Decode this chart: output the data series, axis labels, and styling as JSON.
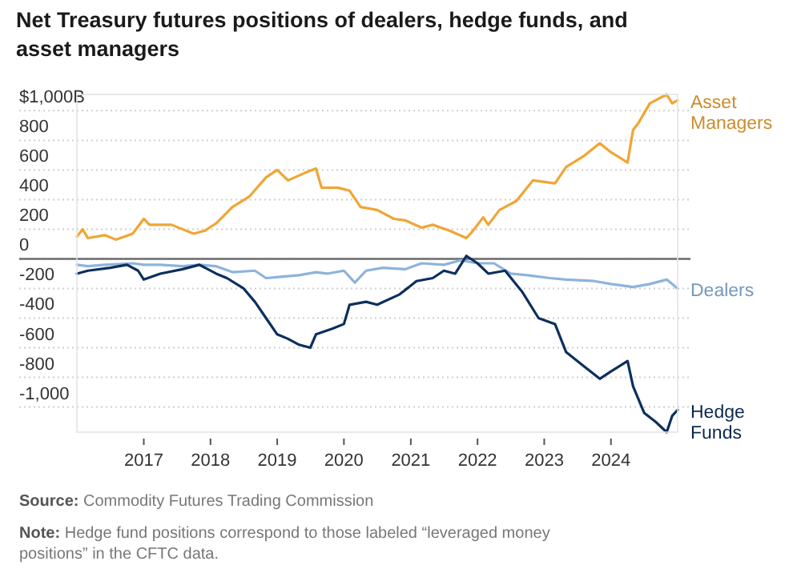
{
  "chart_data": {
    "type": "line",
    "title": "Net Treasury futures positions of dealers, hedge funds, and asset managers",
    "annotations": [
      "Source: Commodity Futures Trading Commission",
      "Note: Hedge fund positions correspond to those labeled “leveraged money positions” in the CFTC data."
    ],
    "xticks": [
      {
        "value": "2017-01-01",
        "label": "2017"
      },
      {
        "value": "2018-01-01",
        "label": "2018"
      },
      {
        "value": "2019-01-01",
        "label": "2019"
      },
      {
        "value": "2020-01-01",
        "label": "2020"
      },
      {
        "value": "2021-01-01",
        "label": "2021"
      },
      {
        "value": "2022-01-01",
        "label": "2022"
      },
      {
        "value": "2023-01-01",
        "label": "2023"
      },
      {
        "value": "2024-01-01",
        "label": "2024"
      }
    ],
    "yticks": [
      {
        "value": -1000,
        "label": "-1,000"
      },
      -800,
      -600,
      -400,
      -200,
      0,
      200,
      400,
      600,
      800,
      {
        "value": 1000,
        "label": "$1,000B"
      }
    ],
    "xlim": [
      "2016-01",
      "2024-12-31"
    ],
    "ylim": [
      -1170,
      1110
    ],
    "grid": "y",
    "legend": false,
    "line_style": "solid",
    "marker": "none",
    "ref_lines": [
      {
        "axis": "y",
        "value": 0,
        "color": "#6b6b6b"
      }
    ],
    "series": [
      {
        "name": "Asset Managers",
        "color": "#f0a534",
        "x": [
          "2016-01",
          "2016-02",
          "2016-03",
          "2016-06",
          "2016-08",
          "2016-11",
          "2017-01",
          "2017-02",
          "2017-06",
          "2017-10",
          "2017-12",
          "2018-02",
          "2018-05",
          "2018-08",
          "2018-11",
          "2019-01",
          "2019-03",
          "2019-06",
          "2019-08",
          "2019-09",
          "2019-12",
          "2020-02",
          "2020-04",
          "2020-07",
          "2020-10",
          "2020-12",
          "2021-03",
          "2021-05",
          "2021-08",
          "2021-11",
          "2021-12",
          "2022-02",
          "2022-03",
          "2022-05",
          "2022-08",
          "2022-11",
          "2023-03",
          "2023-05",
          "2023-08",
          "2023-11",
          "2024-01",
          "2024-04",
          "2024-05",
          "2024-06",
          "2024-08",
          "2024-11",
          "2024-12-01",
          "2024-12-31"
        ],
        "values": [
          150,
          200,
          140,
          160,
          130,
          170,
          270,
          230,
          230,
          170,
          190,
          240,
          350,
          420,
          550,
          600,
          530,
          580,
          610,
          480,
          480,
          460,
          350,
          330,
          270,
          260,
          210,
          230,
          190,
          140,
          180,
          280,
          230,
          330,
          390,
          530,
          510,
          620,
          690,
          780,
          720,
          650,
          870,
          920,
          1050,
          1110,
          1050,
          1070
        ]
      },
      {
        "name": "Dealers",
        "color": "#8db3dc",
        "x": [
          "2016-01",
          "2016-03",
          "2016-06",
          "2016-11",
          "2017-01",
          "2017-04",
          "2017-08",
          "2017-11",
          "2018-02",
          "2018-05",
          "2018-09",
          "2018-11",
          "2019-02",
          "2019-05",
          "2019-08",
          "2019-10",
          "2020-01",
          "2020-03",
          "2020-05",
          "2020-08",
          "2020-12",
          "2021-03",
          "2021-07",
          "2021-10",
          "2022-01",
          "2022-04",
          "2022-07",
          "2022-10",
          "2023-02",
          "2023-05",
          "2023-10",
          "2024-01",
          "2024-05",
          "2024-08",
          "2024-11",
          "2024-12-31"
        ],
        "values": [
          -40,
          -50,
          -40,
          -30,
          -40,
          -40,
          -50,
          -40,
          -50,
          -90,
          -80,
          -130,
          -120,
          -110,
          -90,
          -100,
          -80,
          -160,
          -80,
          -60,
          -70,
          -30,
          -40,
          -10,
          -30,
          -30,
          -100,
          -110,
          -130,
          -140,
          -150,
          -170,
          -190,
          -170,
          -140,
          -200
        ]
      },
      {
        "name": "Hedge Funds",
        "color": "#0d2f5e",
        "x": [
          "2016-01",
          "2016-03",
          "2016-07",
          "2016-10",
          "2016-12",
          "2017-01",
          "2017-04",
          "2017-08",
          "2017-11",
          "2018-02",
          "2018-04",
          "2018-07",
          "2018-09",
          "2018-11",
          "2019-01",
          "2019-03",
          "2019-05",
          "2019-07",
          "2019-08",
          "2019-11",
          "2020-01",
          "2020-02",
          "2020-05",
          "2020-07",
          "2020-11",
          "2021-02",
          "2021-05",
          "2021-07",
          "2021-09",
          "2021-11",
          "2022-01",
          "2022-03",
          "2022-06",
          "2022-09",
          "2022-12",
          "2023-03",
          "2023-05",
          "2023-08",
          "2023-11",
          "2024-01",
          "2024-04",
          "2024-05",
          "2024-07",
          "2024-09",
          "2024-11",
          "2024-12-01",
          "2024-12-31"
        ],
        "values": [
          -100,
          -80,
          -60,
          -40,
          -80,
          -140,
          -100,
          -70,
          -40,
          -100,
          -130,
          -200,
          -290,
          -400,
          -510,
          -540,
          -580,
          -600,
          -510,
          -470,
          -440,
          -310,
          -290,
          -310,
          -240,
          -150,
          -130,
          -80,
          -100,
          20,
          -30,
          -100,
          -80,
          -220,
          -400,
          -440,
          -630,
          -720,
          -810,
          -760,
          -690,
          -860,
          -1040,
          -1100,
          -1170,
          -1060,
          -1020
        ]
      }
    ]
  }
}
